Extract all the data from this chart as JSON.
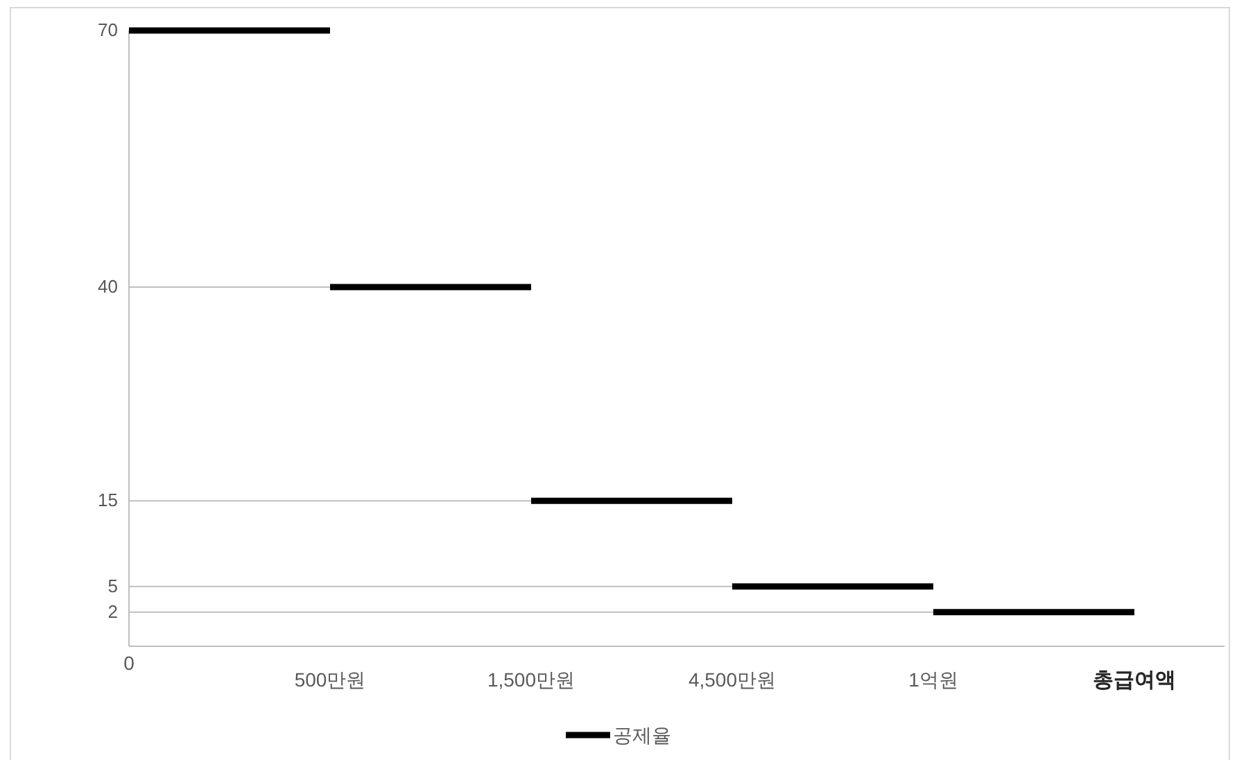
{
  "chart_data": {
    "type": "line",
    "categories": [
      "0",
      "500만원",
      "1,500만원",
      "4,500만원",
      "1억원",
      "총급여액"
    ],
    "series": [
      {
        "name": "공제율",
        "color": "#000000",
        "values": [
          70,
          70,
          null,
          null,
          null,
          null
        ]
      },
      {
        "color": "#000000",
        "values": [
          null,
          40,
          40,
          null,
          null,
          null
        ]
      },
      {
        "color": "#000000",
        "values": [
          null,
          null,
          15,
          15,
          null,
          null
        ]
      },
      {
        "color": "#000000",
        "values": [
          null,
          null,
          null,
          5,
          5,
          null
        ]
      },
      {
        "color": "#000000",
        "values": [
          null,
          null,
          null,
          null,
          2,
          2
        ]
      },
      {
        "color": "#bfbfbf",
        "values": [
          40,
          40,
          null,
          null,
          null,
          null
        ]
      },
      {
        "color": "#bfbfbf",
        "values": [
          15,
          15,
          15,
          null,
          null,
          null
        ]
      },
      {
        "color": "#bfbfbf",
        "values": [
          5,
          5,
          5,
          5,
          null,
          null
        ]
      },
      {
        "color": "#bfbfbf",
        "values": [
          2,
          2,
          2,
          2,
          2,
          null
        ]
      }
    ],
    "ylim": [
      -2,
      70
    ],
    "yticks": [
      2,
      5,
      15,
      40,
      70
    ],
    "legend": "bottom"
  }
}
